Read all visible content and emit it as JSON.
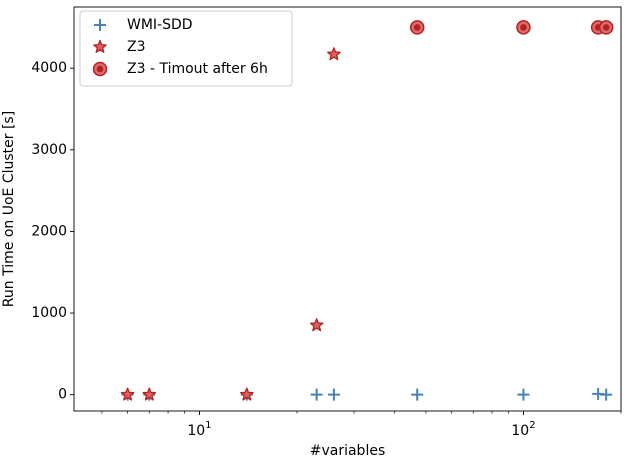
{
  "chart_data": {
    "type": "scatter",
    "xlabel": "#variables",
    "ylabel": "Run Time on UoE Cluster [s]",
    "xscale": "log",
    "xlim": [
      4.1,
      200
    ],
    "ylim": [
      -200,
      4750
    ],
    "grid": false,
    "legend_position": "top-left",
    "xticks": [
      {
        "value": 10,
        "base": "10",
        "exp": "1"
      },
      {
        "value": 100,
        "base": "10",
        "exp": "2"
      }
    ],
    "yticks": [
      {
        "value": 0,
        "label": "0"
      },
      {
        "value": 1000,
        "label": "1000"
      },
      {
        "value": 2000,
        "label": "2000"
      },
      {
        "value": 3000,
        "label": "3000"
      },
      {
        "value": 4000,
        "label": "4000"
      }
    ],
    "series": [
      {
        "name": "WMI-SDD",
        "marker": "plus",
        "color": "#4682b4",
        "points": [
          [
            6,
            0
          ],
          [
            7,
            0
          ],
          [
            14,
            0
          ],
          [
            23,
            0
          ],
          [
            26,
            0
          ],
          [
            47,
            0
          ],
          [
            100,
            0
          ],
          [
            170,
            10
          ],
          [
            180,
            0
          ]
        ]
      },
      {
        "name": "Z3",
        "marker": "star",
        "color": "#b22222",
        "points": [
          [
            6,
            0
          ],
          [
            7,
            0
          ],
          [
            14,
            0
          ],
          [
            23,
            850
          ],
          [
            26,
            4170
          ]
        ]
      },
      {
        "name": "Z3 - Timout after 6h",
        "marker": "circle",
        "color": "#b22222",
        "points": [
          [
            47,
            4500
          ],
          [
            100,
            4500
          ],
          [
            170,
            4500
          ],
          [
            180,
            4500
          ]
        ]
      }
    ]
  }
}
